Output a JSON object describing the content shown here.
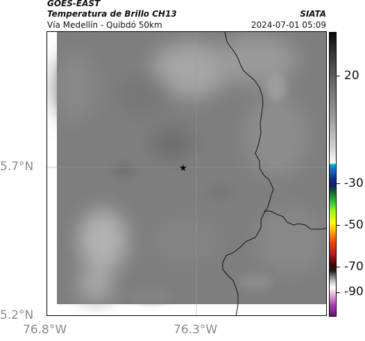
{
  "header": {
    "satellite": "GOES-EAST",
    "product": "Temperatura de Brillo CH13",
    "region": "Vía Medellín - Quibdó 50km",
    "organization": "SIATA",
    "datetime": "2024-07-01 05:09"
  },
  "axes": {
    "lat_labels": [
      "5.7°N",
      "5.2°N"
    ],
    "lon_labels": [
      "76.8°W",
      "76.3°W"
    ]
  },
  "colorbar": {
    "tick_labels": [
      "20",
      "-30",
      "-50",
      "-70",
      "-90"
    ]
  },
  "marker": {
    "icon": "star-icon"
  }
}
